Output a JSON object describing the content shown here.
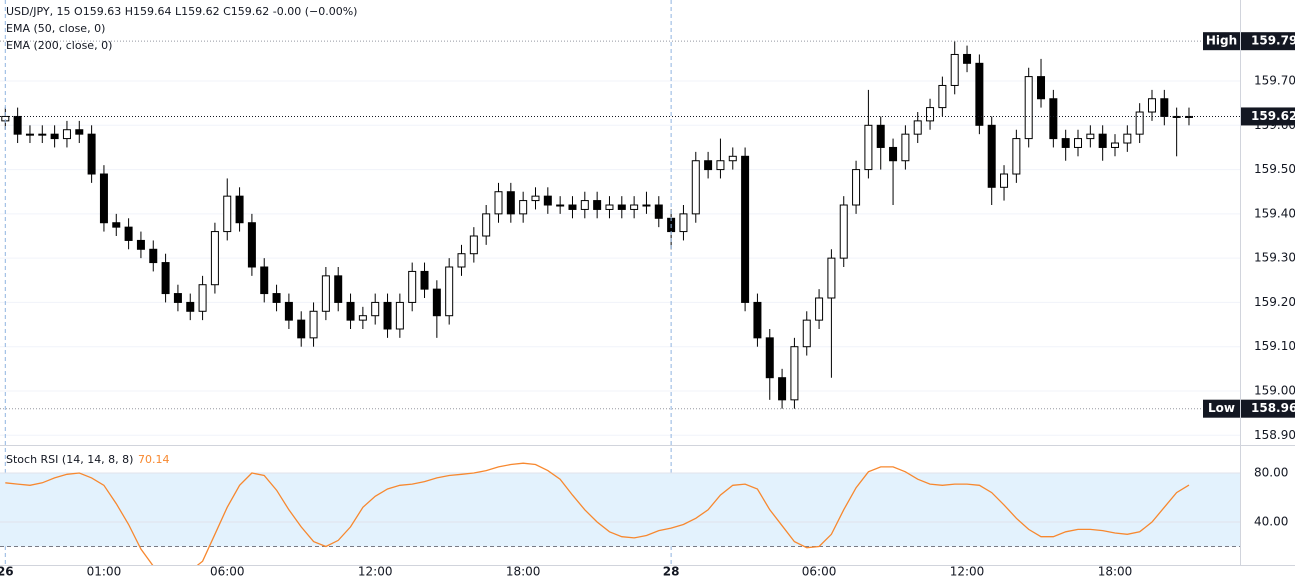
{
  "chart_data": [
    {
      "type": "candlestick",
      "title": "USD/JPY, 15  O159.63  H159.64  L159.62  C159.62  -0.00 (−0.00%)",
      "indicators": [
        "EMA (50, close, 0)",
        "EMA (200, close, 0)"
      ],
      "categories": [
        "26",
        null,
        null,
        null,
        null,
        null,
        null,
        null,
        "01:00",
        null,
        null,
        null,
        null,
        null,
        null,
        null,
        null,
        null,
        "06:00",
        null,
        null,
        null,
        null,
        null,
        null,
        null,
        null,
        null,
        null,
        null,
        "12:00",
        null,
        null,
        null,
        null,
        null,
        null,
        null,
        null,
        null,
        null,
        null,
        "18:00",
        null,
        null,
        null,
        null,
        null,
        null,
        null,
        null,
        null,
        null,
        null,
        "28",
        null,
        null,
        null,
        null,
        null,
        null,
        null,
        null,
        null,
        null,
        null,
        "06:00",
        null,
        null,
        null,
        null,
        null,
        null,
        null,
        null,
        null,
        null,
        null,
        "12:00",
        null,
        null,
        null,
        null,
        null,
        null,
        null,
        null,
        null,
        null,
        null,
        "18:00",
        null,
        null,
        null,
        null,
        null,
        null
      ],
      "open": [
        159.61,
        159.62,
        159.58,
        159.58,
        159.58,
        159.57,
        159.59,
        159.58,
        159.49,
        159.38,
        159.37,
        159.34,
        159.32,
        159.29,
        159.22,
        159.2,
        159.18,
        159.24,
        159.36,
        159.44,
        159.38,
        159.28,
        159.22,
        159.2,
        159.16,
        159.12,
        159.18,
        159.26,
        159.2,
        159.16,
        159.17,
        159.2,
        159.14,
        159.2,
        159.27,
        159.23,
        159.17,
        159.28,
        159.31,
        159.35,
        159.4,
        159.45,
        159.4,
        159.43,
        159.44,
        159.42,
        159.42,
        159.41,
        159.43,
        159.41,
        159.42,
        159.41,
        159.42,
        159.42,
        159.39,
        159.36,
        159.4,
        159.52,
        159.5,
        159.52,
        159.53,
        159.2,
        159.12,
        159.03,
        158.98,
        159.1,
        159.16,
        159.21,
        159.3,
        159.42,
        159.5,
        159.6,
        159.55,
        159.52,
        159.58,
        159.61,
        159.64,
        159.69,
        159.76,
        159.74,
        159.6,
        159.46,
        159.49,
        159.57,
        159.71,
        159.66,
        159.57,
        159.55,
        159.57,
        159.58,
        159.55,
        159.56,
        159.58,
        159.63,
        159.66,
        159.62,
        159.62
      ],
      "high": [
        159.64,
        159.64,
        159.6,
        159.6,
        159.6,
        159.61,
        159.61,
        159.6,
        159.51,
        159.4,
        159.39,
        159.36,
        159.34,
        159.31,
        159.24,
        159.22,
        159.26,
        159.38,
        159.48,
        159.46,
        159.4,
        159.3,
        159.24,
        159.22,
        159.18,
        159.2,
        159.28,
        159.28,
        159.22,
        159.19,
        159.22,
        159.22,
        159.22,
        159.29,
        159.29,
        159.25,
        159.3,
        159.33,
        159.37,
        159.42,
        159.47,
        159.47,
        159.45,
        159.46,
        159.46,
        159.44,
        159.44,
        159.45,
        159.45,
        159.44,
        159.44,
        159.44,
        159.45,
        159.44,
        159.41,
        159.42,
        159.54,
        159.54,
        159.57,
        159.55,
        159.55,
        159.22,
        159.14,
        159.05,
        159.12,
        159.18,
        159.23,
        159.32,
        159.44,
        159.52,
        159.68,
        159.62,
        159.57,
        159.6,
        159.63,
        159.66,
        159.71,
        159.79,
        159.78,
        159.76,
        159.62,
        159.51,
        159.59,
        159.73,
        159.75,
        159.68,
        159.59,
        159.59,
        159.6,
        159.6,
        159.58,
        159.6,
        159.65,
        159.68,
        159.68,
        159.64,
        159.64
      ],
      "low": [
        159.59,
        159.56,
        159.56,
        159.56,
        159.55,
        159.55,
        159.56,
        159.47,
        159.36,
        159.35,
        159.32,
        159.3,
        159.27,
        159.2,
        159.18,
        159.16,
        159.16,
        159.22,
        159.34,
        159.36,
        159.26,
        159.2,
        159.18,
        159.14,
        159.1,
        159.1,
        159.16,
        159.18,
        159.14,
        159.14,
        159.15,
        159.12,
        159.12,
        159.18,
        159.21,
        159.12,
        159.15,
        159.26,
        159.29,
        159.33,
        159.38,
        159.38,
        159.38,
        159.41,
        159.4,
        159.4,
        159.39,
        159.39,
        159.39,
        159.39,
        159.39,
        159.39,
        159.4,
        159.37,
        159.32,
        159.34,
        159.38,
        159.48,
        159.48,
        159.5,
        159.18,
        159.1,
        158.98,
        158.96,
        158.96,
        159.08,
        159.14,
        159.03,
        159.28,
        159.4,
        159.48,
        159.5,
        159.42,
        159.5,
        159.56,
        159.59,
        159.62,
        159.67,
        159.72,
        159.58,
        159.42,
        159.43,
        159.47,
        159.55,
        159.64,
        159.55,
        159.52,
        159.53,
        159.55,
        159.52,
        159.53,
        159.54,
        159.56,
        159.61,
        159.6,
        159.53,
        159.6
      ],
      "close": [
        159.62,
        159.58,
        159.58,
        159.58,
        159.57,
        159.59,
        159.58,
        159.49,
        159.38,
        159.37,
        159.34,
        159.32,
        159.29,
        159.22,
        159.2,
        159.18,
        159.24,
        159.36,
        159.44,
        159.38,
        159.28,
        159.22,
        159.2,
        159.16,
        159.12,
        159.18,
        159.26,
        159.2,
        159.16,
        159.17,
        159.2,
        159.14,
        159.2,
        159.27,
        159.23,
        159.17,
        159.28,
        159.31,
        159.35,
        159.4,
        159.45,
        159.4,
        159.43,
        159.44,
        159.42,
        159.42,
        159.41,
        159.43,
        159.41,
        159.42,
        159.41,
        159.42,
        159.42,
        159.39,
        159.36,
        159.4,
        159.52,
        159.5,
        159.52,
        159.53,
        159.2,
        159.12,
        159.03,
        158.98,
        159.1,
        159.16,
        159.21,
        159.3,
        159.42,
        159.5,
        159.6,
        159.55,
        159.52,
        159.58,
        159.61,
        159.64,
        159.69,
        159.76,
        159.74,
        159.6,
        159.46,
        159.49,
        159.57,
        159.71,
        159.66,
        159.57,
        159.55,
        159.57,
        159.58,
        159.55,
        159.56,
        159.58,
        159.63,
        159.66,
        159.62,
        159.62,
        159.62
      ],
      "up_color": "#ffffff",
      "down_color": "#000000",
      "border_color": "#000000",
      "ylim": [
        158.878,
        159.883
      ],
      "yticks": [
        {
          "value": 158.9,
          "label": "158.90"
        },
        {
          "value": 159.0,
          "label": "159.00"
        },
        {
          "value": 159.1,
          "label": "159.10"
        },
        {
          "value": 159.2,
          "label": "159.20"
        },
        {
          "value": 159.3,
          "label": "159.30"
        },
        {
          "value": 159.4,
          "label": "159.40"
        },
        {
          "value": 159.5,
          "label": "159.50"
        },
        {
          "value": 159.6,
          "label": "159.60"
        },
        {
          "value": 159.7,
          "label": "159.70"
        }
      ],
      "grid": true,
      "annotations": [
        {
          "label": "High",
          "value": 159.79
        },
        {
          "label": "Low",
          "value": 158.96
        }
      ],
      "last_price": 159.62
    },
    {
      "type": "line",
      "title": "Stoch RSI (14, 14, 8, 8)",
      "color": "#f7882f",
      "values": [
        72,
        71,
        70,
        72,
        76,
        79,
        80,
        76,
        70,
        55,
        38,
        18,
        4,
        0,
        0,
        0,
        8,
        30,
        52,
        70,
        80,
        78,
        66,
        50,
        36,
        24,
        20,
        25,
        36,
        52,
        61,
        67,
        70,
        71,
        73,
        76,
        78,
        79,
        80,
        82,
        85,
        87,
        88,
        87,
        82,
        75,
        62,
        50,
        40,
        32,
        28,
        27,
        29,
        33,
        35,
        38,
        43,
        50,
        62,
        70,
        71,
        67,
        50,
        37,
        24,
        19,
        20,
        30,
        50,
        68,
        81,
        85,
        85,
        81,
        75,
        71,
        70,
        71,
        71,
        70,
        64,
        54,
        43,
        34,
        28,
        28,
        32,
        34,
        34,
        33,
        31,
        30,
        32,
        40,
        52,
        64,
        70.14
      ],
      "ylim": [
        4.9,
        102.9
      ],
      "yticks": [
        {
          "value": 40,
          "label": "40.00"
        },
        {
          "value": 80,
          "label": "80.00"
        }
      ],
      "band": [
        20,
        80
      ],
      "band_color": "#e3f2fd"
    }
  ]
}
